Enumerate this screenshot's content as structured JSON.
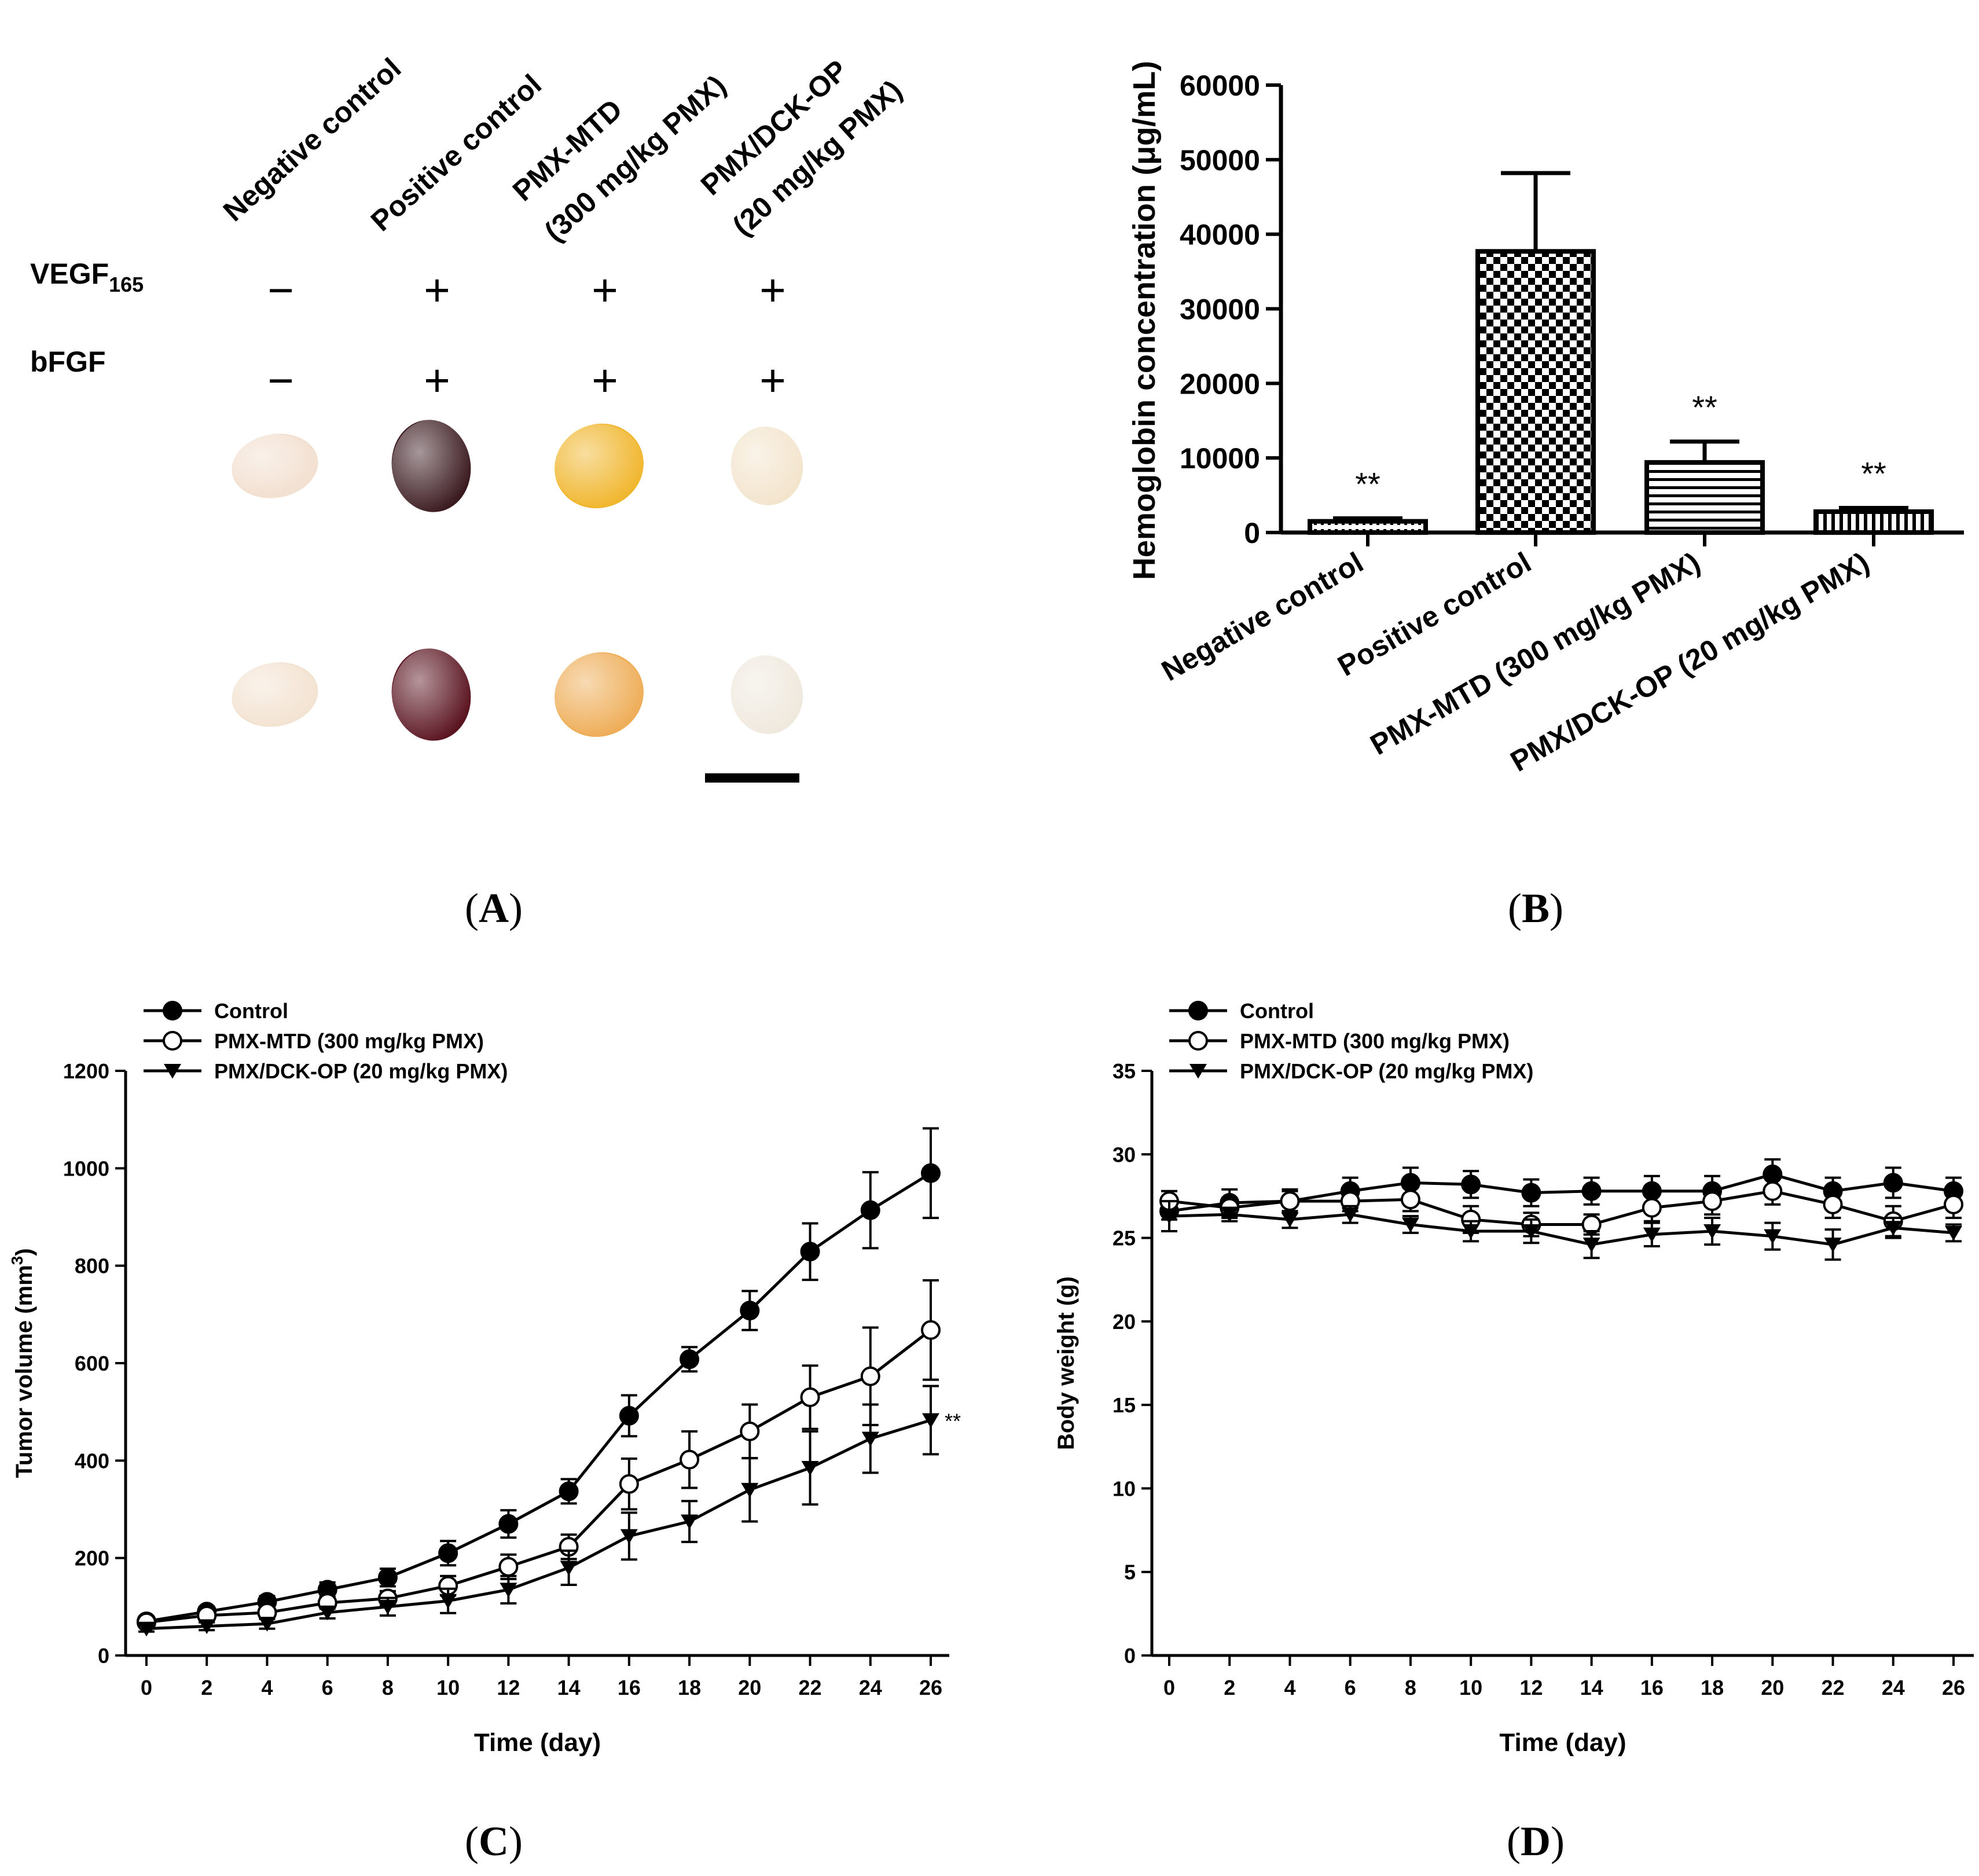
{
  "panel_labels": {
    "A": "A",
    "B": "B",
    "C": "C",
    "D": "D"
  },
  "panel_a": {
    "columns": [
      "Negative control",
      "Positive control",
      "PMX-MTD",
      "(300 mg/kg PMX)",
      "PMX/DCK-OP",
      "(20 mg/kg PMX)"
    ],
    "rows": [
      {
        "label": "VEGF",
        "sub": "165",
        "signs": [
          "−",
          "+",
          "+",
          "+"
        ]
      },
      {
        "label": "bFGF",
        "sub": "",
        "signs": [
          "−",
          "+",
          "+",
          "+"
        ]
      }
    ],
    "plug_colors": [
      [
        "#f2dfcf",
        "#3a1a1f",
        "#f0b52a",
        "#f3e4cc"
      ],
      [
        "#f3e2d0",
        "#5a1420",
        "#eeac55",
        "#efe8dd"
      ]
    ]
  },
  "chart_data": [
    {
      "type": "bar",
      "panel": "B",
      "categories": [
        "Negative control",
        "Positive control",
        "PMX-MTD (300 mg/kg PMX)",
        "PMX/DCK-OP (20 mg/kg PMX)"
      ],
      "values": [
        1500,
        37700,
        9400,
        2800
      ],
      "errors": [
        400,
        10500,
        2800,
        500
      ],
      "annotations": [
        "**",
        "",
        "**",
        "**"
      ],
      "patterns": [
        "dots",
        "checker",
        "hlines",
        "vlines"
      ],
      "ylabel": "Hemoglobin concentration (μg/mL)",
      "yticks": [
        0,
        10000,
        20000,
        30000,
        40000,
        50000,
        60000
      ],
      "ylim": [
        0,
        60000
      ]
    },
    {
      "type": "line",
      "panel": "C",
      "xlabel": "Time (day)",
      "ylabel": "Tumor volume (mm",
      "ylabel_sup": "3",
      "ylabel_end": ")",
      "x": [
        0,
        2,
        4,
        6,
        8,
        10,
        12,
        14,
        16,
        18,
        20,
        22,
        24,
        26
      ],
      "xlim": [
        0,
        26
      ],
      "ylim": [
        0,
        1200
      ],
      "yticks": [
        0,
        200,
        400,
        600,
        800,
        1000,
        1200
      ],
      "series": [
        {
          "name": "Control",
          "marker": "filled-circle",
          "values": [
            70,
            90,
            110,
            135,
            160,
            210,
            270,
            337,
            492,
            608,
            708,
            829,
            914,
            990
          ],
          "errors": [
            8,
            10,
            12,
            15,
            18,
            25,
            28,
            25,
            42,
            25,
            40,
            58,
            78,
            92
          ]
        },
        {
          "name": "PMX-MTD (300 mg/kg PMX)",
          "marker": "open-circle",
          "values": [
            68,
            82,
            88,
            108,
            117,
            143,
            182,
            223,
            352,
            402,
            460,
            530,
            573,
            668
          ],
          "errors": [
            7,
            8,
            10,
            12,
            15,
            20,
            25,
            25,
            52,
            58,
            55,
            65,
            100,
            102
          ]
        },
        {
          "name": "PMX/DCK-OP (20 mg/kg PMX)",
          "marker": "filled-triangle",
          "values": [
            55,
            60,
            65,
            88,
            100,
            112,
            135,
            180,
            245,
            275,
            340,
            385,
            445,
            483
          ],
          "errors": [
            6,
            8,
            10,
            12,
            18,
            25,
            28,
            35,
            48,
            42,
            65,
            75,
            70,
            70
          ]
        }
      ],
      "annotation": "**"
    },
    {
      "type": "line",
      "panel": "D",
      "xlabel": "Time (day)",
      "ylabel": "Body weight (g)",
      "x": [
        0,
        2,
        4,
        6,
        8,
        10,
        12,
        14,
        16,
        18,
        20,
        22,
        24,
        26
      ],
      "xlim": [
        0,
        26
      ],
      "ylim": [
        0,
        35
      ],
      "yticks": [
        0,
        5,
        10,
        15,
        20,
        25,
        30,
        35
      ],
      "series": [
        {
          "name": "Control",
          "marker": "filled-circle",
          "values": [
            26.6,
            27.1,
            27.2,
            27.8,
            28.3,
            28.2,
            27.7,
            27.8,
            27.8,
            27.8,
            28.8,
            27.8,
            28.3,
            27.8
          ],
          "errors": [
            0.5,
            0.8,
            0.7,
            0.8,
            0.9,
            0.8,
            0.8,
            0.8,
            0.9,
            0.9,
            0.9,
            0.8,
            0.9,
            0.8
          ]
        },
        {
          "name": "PMX-MTD (300 mg/kg PMX)",
          "marker": "open-circle",
          "values": [
            27.2,
            26.8,
            27.2,
            27.2,
            27.3,
            26.1,
            25.8,
            25.8,
            26.8,
            27.2,
            27.8,
            27.0,
            26.0,
            27.0
          ],
          "errors": [
            0.6,
            0.6,
            0.6,
            0.6,
            0.7,
            0.8,
            0.7,
            0.6,
            0.8,
            0.8,
            0.8,
            0.8,
            0.9,
            0.8
          ]
        },
        {
          "name": "PMX/DCK-OP (20 mg/kg PMX)",
          "marker": "filled-triangle",
          "values": [
            26.3,
            26.4,
            26.1,
            26.4,
            25.8,
            25.4,
            25.4,
            24.6,
            25.2,
            25.4,
            25.1,
            24.6,
            25.6,
            25.3
          ],
          "errors": [
            0.9,
            0.4,
            0.5,
            0.5,
            0.5,
            0.6,
            0.7,
            0.8,
            0.7,
            0.8,
            0.8,
            0.9,
            0.6,
            0.5
          ]
        }
      ]
    }
  ]
}
